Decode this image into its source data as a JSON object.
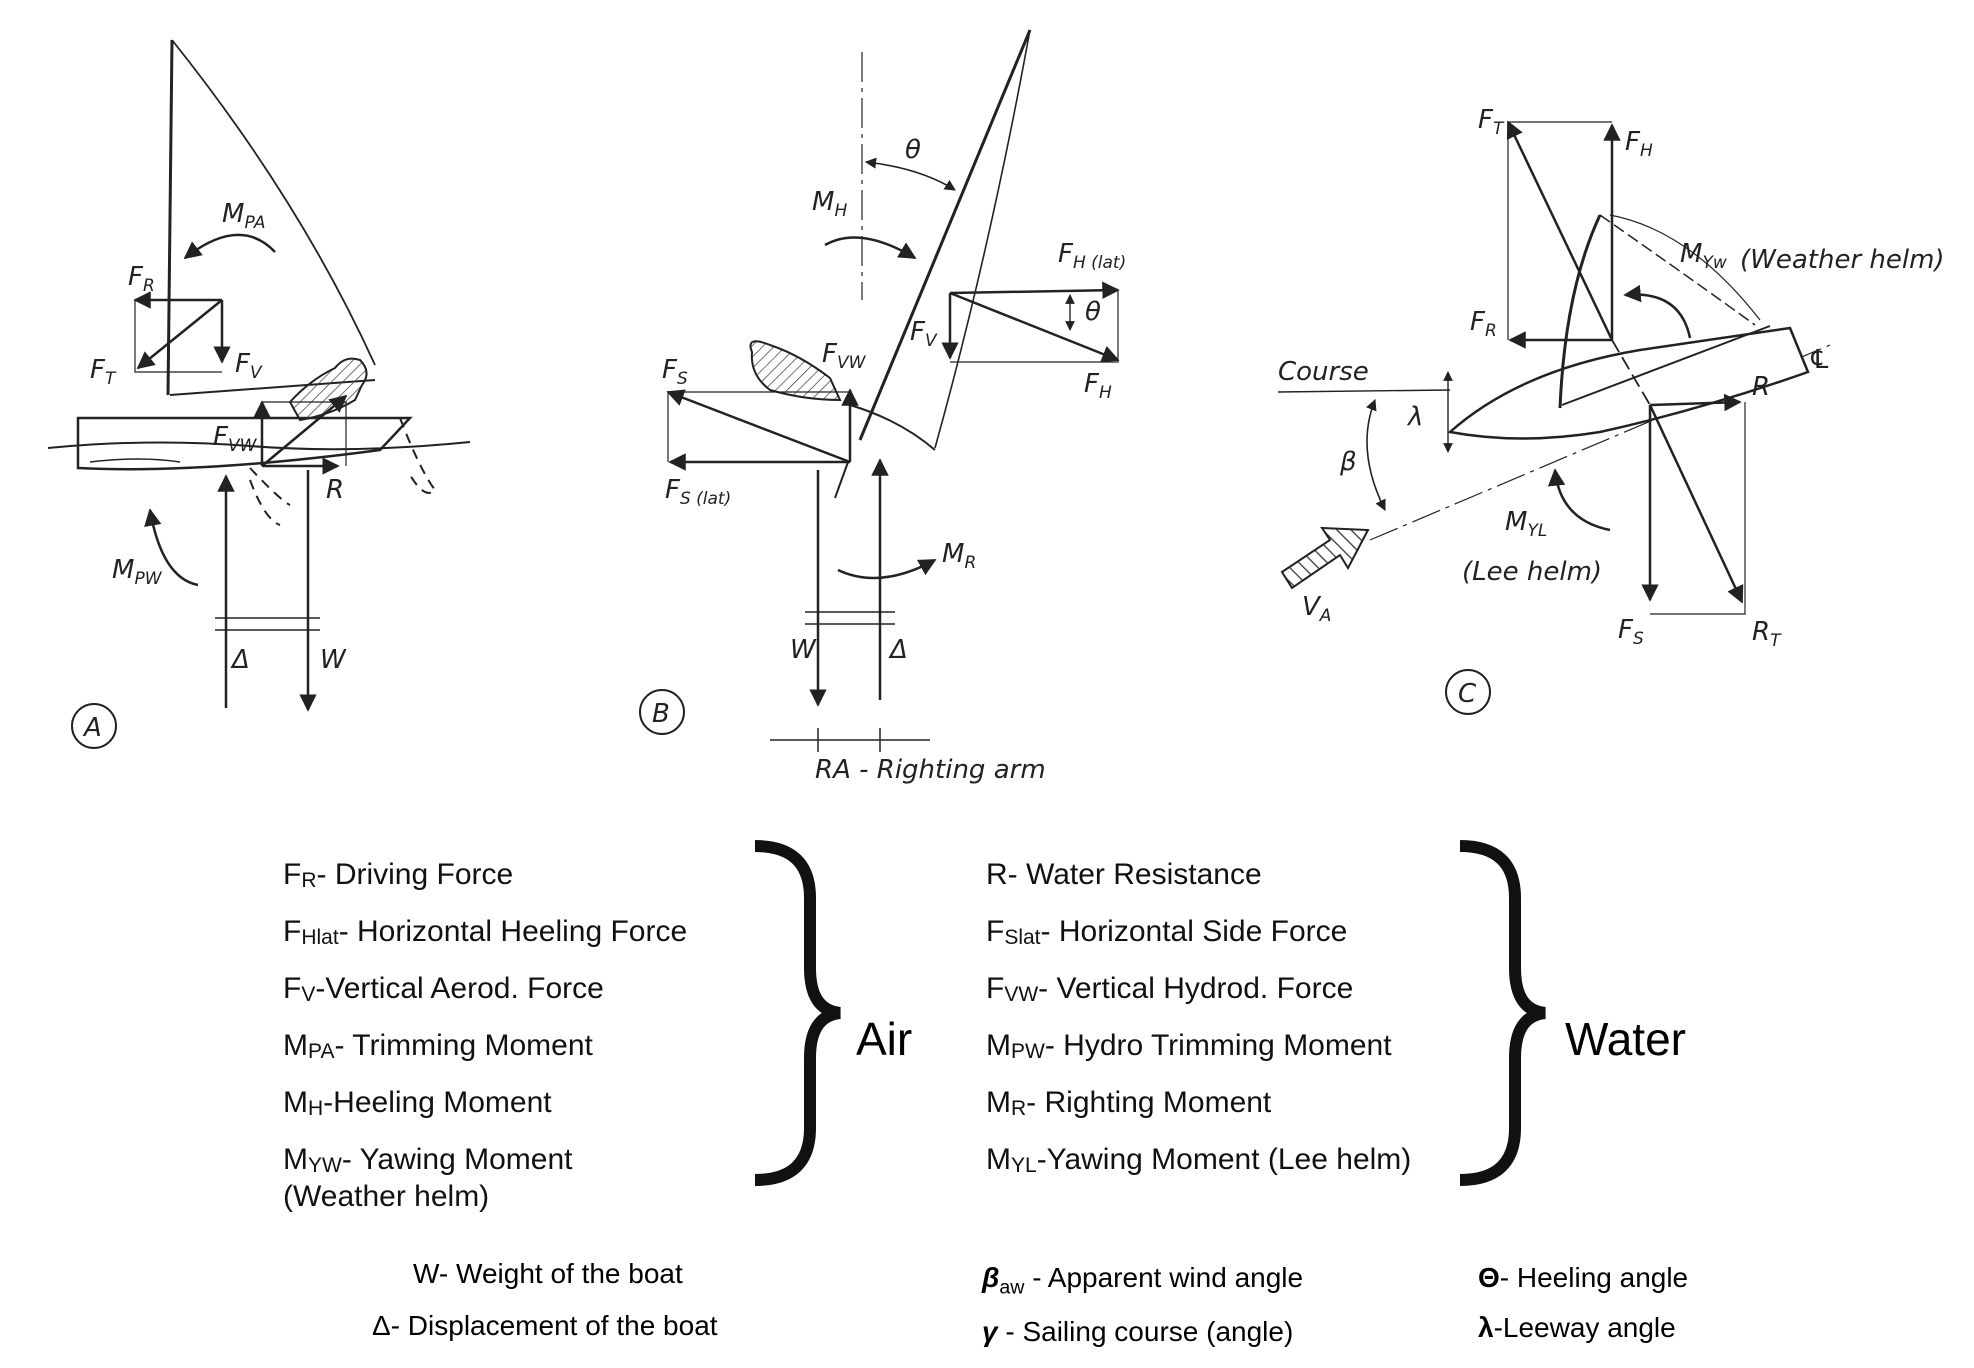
{
  "panels": {
    "a": {
      "circle_label": "A",
      "labels": {
        "fr": "F",
        "fr_sub": "R",
        "ft": "F",
        "ft_sub": "T",
        "fv": "F",
        "fv_sub": "V",
        "fvw": "F",
        "fvw_sub": "VW",
        "r": "R",
        "mpa": "M",
        "mpa_sub": "PA",
        "mpw": "M",
        "mpw_sub": "PW",
        "delta": "Δ",
        "w": "W"
      }
    },
    "b": {
      "circle_label": "B",
      "labels": {
        "theta": "θ",
        "mh": "M",
        "mh_sub": "H",
        "fhlat": "F",
        "fhlat_sub": "H (lat)",
        "fv": "F",
        "fv_sub": "V",
        "fh": "F",
        "fh_sub": "H",
        "theta2": "θ",
        "fs": "F",
        "fs_sub": "S",
        "fvw": "F",
        "fvw_sub": "VW",
        "fslat": "F",
        "fslat_sub": "S (lat)",
        "mr": "M",
        "mr_sub": "R",
        "w": "W",
        "delta": "Δ",
        "ra": "RA - Righting arm"
      }
    },
    "c": {
      "circle_label": "C",
      "labels": {
        "ft": "F",
        "ft_sub": "T",
        "fh": "F",
        "fh_sub": "H",
        "myw": "M",
        "myw_sub": "Yw",
        "weather_helm": "(Weather helm)",
        "fr": "F",
        "fr_sub": "R",
        "cl": "℄",
        "course": "Course",
        "lambda": "λ",
        "beta": "β",
        "r": "R",
        "myl": "M",
        "myl_sub": "YL",
        "lee_helm": "(Lee helm)",
        "va": "V",
        "va_sub": "A",
        "fs": "F",
        "fs_sub": "S",
        "rt": "R",
        "rt_sub": "T"
      }
    }
  },
  "legend_air": {
    "items": [
      {
        "main": "F",
        "sub": "R",
        "text": "- Driving Force"
      },
      {
        "main": "F",
        "sub": "Hlat",
        "text": "- Horizontal Heeling Force"
      },
      {
        "main": "F",
        "sub": "V",
        "text": "-Vertical Aerod. Force"
      },
      {
        "main": "M",
        "sub": "PA",
        "text": "- Trimming Moment"
      },
      {
        "main": "M",
        "sub": "H",
        "text": "-Heeling Moment"
      },
      {
        "main": "M",
        "sub": "YW",
        "text": "- Yawing Moment"
      }
    ],
    "extra_line": "(Weather helm)",
    "group_label": "Air"
  },
  "legend_water": {
    "items": [
      {
        "main": "R",
        "sub": "",
        "text": "- Water Resistance"
      },
      {
        "main": "F",
        "sub": "Slat",
        "text": "- Horizontal Side Force"
      },
      {
        "main": "F",
        "sub": "VW",
        "text": "- Vertical Hydrod. Force"
      },
      {
        "main": "M",
        "sub": "PW",
        "text": "- Hydro Trimming Moment"
      },
      {
        "main": "M",
        "sub": "R",
        "text": "- Righting Moment"
      },
      {
        "main": "M",
        "sub": "YL",
        "text": "-Yawing Moment (Lee helm)"
      }
    ],
    "group_label": "Water"
  },
  "footer": {
    "weight": "W- Weight of the boat",
    "displacement": "Δ- Displacement of the boat",
    "beta_sym": "β",
    "beta_sub": "aw",
    "beta_text": " - Apparent wind angle",
    "gamma_sym": "γ",
    "gamma_text": " - Sailing course (angle)",
    "theta_sym": "Θ",
    "theta_text": "- Heeling angle",
    "lambda_sym": "λ",
    "lambda_text": "-Leeway angle"
  }
}
